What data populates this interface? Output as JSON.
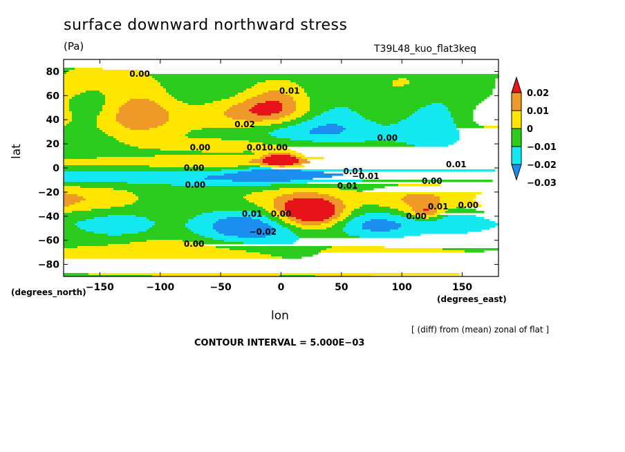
{
  "chart_data": {
    "type": "contour-map",
    "title": "surface downward northward stress",
    "units": "(Pa)",
    "run_label": "T39L48_kuo_flat3keq",
    "xlabel": "lon",
    "ylabel": "lat",
    "x_units": "(degrees_east)",
    "y_units": "(degrees_north)",
    "xlim": [
      -180,
      180
    ],
    "ylim": [
      -90,
      90
    ],
    "x_ticks": [
      -150,
      -100,
      -50,
      0,
      50,
      100,
      150
    ],
    "x_tick_labels": [
      "−150",
      "−100",
      "−50",
      "0",
      "50",
      "100",
      "150"
    ],
    "y_ticks": [
      80,
      60,
      40,
      20,
      0,
      -20,
      -40,
      -60,
      -80
    ],
    "y_tick_labels": [
      "80",
      "60",
      "40",
      "20",
      "0",
      "−20",
      "−40",
      "−60",
      "−80"
    ],
    "subtitle": "[ (diff) from (mean) zonal of flat ]",
    "contour_interval_text": "CONTOUR INTERVAL = 5.000E−03",
    "colorbar": {
      "levels": [
        0.02,
        0.01,
        0,
        -0.01,
        -0.02,
        -0.03
      ],
      "labels": [
        "0.02",
        "0.01",
        "0",
        "−0.01",
        "−0.02",
        "−0.03"
      ],
      "colors": [
        "#e8121a",
        "#ef9a28",
        "#ffe600",
        "#2ccc1e",
        "#14e8f0",
        "#1b8ef0"
      ]
    },
    "contour_labels": [
      {
        "text": "0.00",
        "lon": -117,
        "lat": 78
      },
      {
        "text": "0.01",
        "lon": 7,
        "lat": 64
      },
      {
        "text": "0.02",
        "lon": -30,
        "lat": 36
      },
      {
        "text": "0.00",
        "lon": 88,
        "lat": 25
      },
      {
        "text": "0.00",
        "lon": -67,
        "lat": 17
      },
      {
        "text": "0.01",
        "lon": -20,
        "lat": 17
      },
      {
        "text": "0.00",
        "lon": -3,
        "lat": 17
      },
      {
        "text": "0.01",
        "lon": 145,
        "lat": 3
      },
      {
        "text": "0.00",
        "lon": -72,
        "lat": 0
      },
      {
        "text": "0.01",
        "lon": 60,
        "lat": -3
      },
      {
        "text": "-0.01",
        "lon": 70,
        "lat": -7
      },
      {
        "text": "0.00",
        "lon": -71,
        "lat": -14
      },
      {
        "text": "0.00",
        "lon": 125,
        "lat": -11
      },
      {
        "text": "0.01",
        "lon": 55,
        "lat": -15
      },
      {
        "text": "0.01",
        "lon": 130,
        "lat": -32
      },
      {
        "text": "0.00",
        "lon": 155,
        "lat": -31
      },
      {
        "text": "0.00",
        "lon": 112,
        "lat": -40
      },
      {
        "text": "0.01",
        "lon": -24,
        "lat": -38
      },
      {
        "text": "0.00",
        "lon": 0,
        "lat": -38
      },
      {
        "text": "-0.02",
        "lon": -15,
        "lat": -53
      },
      {
        "text": "0.00",
        "lon": -72,
        "lat": -63
      }
    ],
    "features": [
      {
        "lon": -140,
        "lat": 70,
        "value": 0.004,
        "dlon": 80,
        "dlat": 14
      },
      {
        "lon": -156,
        "lat": 52,
        "value": -0.012,
        "dlon": 20,
        "dlat": 12
      },
      {
        "lon": -120,
        "lat": 44,
        "value": 0.022,
        "dlon": 26,
        "dlat": 14
      },
      {
        "lon": -80,
        "lat": 56,
        "value": -0.007,
        "dlon": 22,
        "dlat": 16
      },
      {
        "lon": -45,
        "lat": 64,
        "value": -0.005,
        "dlon": 26,
        "dlat": 14
      },
      {
        "lon": -30,
        "lat": 44,
        "value": 0.018,
        "dlon": 40,
        "dlat": 10
      },
      {
        "lon": -5,
        "lat": 48,
        "value": 0.02,
        "dlon": 22,
        "dlat": 9
      },
      {
        "lon": -5,
        "lat": 62,
        "value": 0.01,
        "dlon": 16,
        "dlat": 8
      },
      {
        "lon": 35,
        "lat": 34,
        "value": -0.016,
        "dlon": 40,
        "dlat": 18
      },
      {
        "lon": 85,
        "lat": 44,
        "value": 0.011,
        "dlon": 20,
        "dlat": 12
      },
      {
        "lon": 110,
        "lat": 68,
        "value": 0.005,
        "dlon": 24,
        "dlat": 10
      },
      {
        "lon": 145,
        "lat": 68,
        "value": -0.006,
        "dlon": 24,
        "dlat": 12
      },
      {
        "lon": 125,
        "lat": 36,
        "value": -0.013,
        "dlon": 40,
        "dlat": 18
      },
      {
        "lon": 168,
        "lat": 42,
        "value": 0.014,
        "dlon": 18,
        "dlat": 12
      },
      {
        "lon": -170,
        "lat": 62,
        "value": 0.006,
        "dlon": 16,
        "dlat": 12
      },
      {
        "lon": 0,
        "lat": 32,
        "value": -0.008,
        "dlon": 40,
        "dlat": 10
      },
      {
        "lon": -140,
        "lat": 24,
        "value": -0.003,
        "dlon": 40,
        "dlat": 8
      },
      {
        "lon": 0,
        "lat": 19,
        "value": 0.012,
        "dlon": 60,
        "dlat": 5
      },
      {
        "lon": 0,
        "lat": 7,
        "value": 0.04,
        "dlon": 10,
        "dlat": 4
      },
      {
        "lon": 60,
        "lat": 5,
        "value": 0.012,
        "dlon": 80,
        "dlat": 3
      },
      {
        "lon": -60,
        "lat": 5,
        "value": 0.008,
        "dlon": 80,
        "dlat": 3
      },
      {
        "lon": -5,
        "lat": -5,
        "value": -0.022,
        "dlon": 20,
        "dlat": 4
      },
      {
        "lon": -80,
        "lat": -8,
        "value": -0.014,
        "dlon": 120,
        "dlat": 4
      },
      {
        "lon": 90,
        "lat": -5,
        "value": -0.01,
        "dlon": 90,
        "dlat": 3
      },
      {
        "lon": -40,
        "lat": -14,
        "value": -0.006,
        "dlon": 40,
        "dlat": 4
      },
      {
        "lon": -160,
        "lat": -26,
        "value": 0.012,
        "dlon": 26,
        "dlat": 7
      },
      {
        "lon": 5,
        "lat": -25,
        "value": 0.008,
        "dlon": 30,
        "dlat": 8
      },
      {
        "lon": 25,
        "lat": -37,
        "value": 0.045,
        "dlon": 20,
        "dlat": 9
      },
      {
        "lon": 115,
        "lat": -28,
        "value": 0.017,
        "dlon": 26,
        "dlat": 10
      },
      {
        "lon": 120,
        "lat": -37,
        "value": 0.02,
        "dlon": 8,
        "dlat": 4
      },
      {
        "lon": 172,
        "lat": -28,
        "value": 0.012,
        "dlon": 12,
        "dlat": 8
      },
      {
        "lon": -135,
        "lat": -48,
        "value": -0.015,
        "dlon": 24,
        "dlat": 8
      },
      {
        "lon": -30,
        "lat": -50,
        "value": -0.028,
        "dlon": 30,
        "dlat": 10
      },
      {
        "lon": 80,
        "lat": -47,
        "value": -0.023,
        "dlon": 30,
        "dlat": 9
      },
      {
        "lon": 150,
        "lat": -44,
        "value": -0.015,
        "dlon": 22,
        "dlat": 8
      },
      {
        "lon": -80,
        "lat": -68,
        "value": 0.009,
        "dlon": 60,
        "dlat": 10
      },
      {
        "lon": 60,
        "lat": -68,
        "value": 0.006,
        "dlon": 60,
        "dlat": 10
      },
      {
        "lon": 10,
        "lat": -65,
        "value": -0.008,
        "dlon": 20,
        "dlat": 10
      },
      {
        "lon": 0,
        "lat": -82,
        "value": 0.006,
        "dlon": 180,
        "dlat": 6
      }
    ],
    "background_value": -0.003,
    "grid": false
  }
}
